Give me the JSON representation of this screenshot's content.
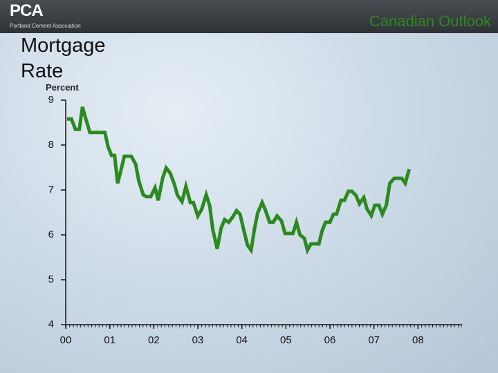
{
  "header": {
    "logo": "PCA",
    "org": "Portland Cement Association",
    "title": "Canadian Outlook"
  },
  "chart_data": {
    "type": "line",
    "title": "Mortgage Rate",
    "y_label": "Percent",
    "color": "#2a8a1e",
    "x": [
      0.03,
      0.13,
      0.22,
      0.31,
      0.38,
      0.47,
      0.55,
      0.64,
      0.74,
      0.83,
      0.89,
      0.96,
      1.04,
      1.11,
      1.18,
      1.26,
      1.33,
      1.41,
      1.49,
      1.59,
      1.66,
      1.76,
      1.84,
      1.93,
      2.03,
      2.1,
      2.2,
      2.28,
      2.37,
      2.46,
      2.54,
      2.64,
      2.73,
      2.83,
      2.9,
      3.0,
      3.09,
      3.19,
      3.27,
      3.34,
      3.44,
      3.53,
      3.61,
      3.7,
      3.78,
      3.88,
      3.96,
      4.05,
      4.13,
      4.21,
      4.29,
      4.36,
      4.46,
      4.54,
      4.63,
      4.71,
      4.8,
      4.9,
      4.98,
      5.07,
      5.16,
      5.24,
      5.32,
      5.42,
      5.49,
      5.57,
      5.67,
      5.75,
      5.82,
      5.9,
      6.0,
      6.08,
      6.15,
      6.25,
      6.33,
      6.42,
      6.5,
      6.59,
      6.67,
      6.77,
      6.84,
      6.94,
      7.02,
      7.11,
      7.19,
      7.28,
      7.36,
      7.46,
      7.54,
      7.63,
      7.71,
      7.8
    ],
    "values": [
      8.58,
      8.58,
      8.35,
      8.35,
      8.85,
      8.54,
      8.28,
      8.28,
      8.28,
      8.28,
      8.28,
      7.97,
      7.77,
      7.77,
      7.15,
      7.46,
      7.75,
      7.75,
      7.75,
      7.57,
      7.2,
      6.89,
      6.85,
      6.85,
      7.05,
      6.77,
      7.26,
      7.49,
      7.38,
      7.15,
      6.88,
      6.74,
      7.08,
      6.72,
      6.72,
      6.42,
      6.57,
      6.89,
      6.65,
      6.12,
      5.69,
      6.15,
      6.34,
      6.28,
      6.38,
      6.54,
      6.46,
      6.08,
      5.77,
      5.66,
      6.15,
      6.49,
      6.72,
      6.54,
      6.28,
      6.28,
      6.42,
      6.31,
      6.03,
      6.03,
      6.03,
      6.28,
      6.0,
      5.92,
      5.66,
      5.8,
      5.8,
      5.8,
      6.08,
      6.28,
      6.28,
      6.46,
      6.46,
      6.77,
      6.77,
      6.97,
      6.97,
      6.88,
      6.69,
      6.83,
      6.58,
      6.43,
      6.66,
      6.66,
      6.46,
      6.66,
      7.15,
      7.26,
      7.26,
      7.26,
      7.15,
      7.46
    ],
    "xlim": [
      0,
      9
    ],
    "xticks": [
      {
        "value": 0,
        "label": "00"
      },
      {
        "value": 1,
        "label": "01"
      },
      {
        "value": 2,
        "label": "02"
      },
      {
        "value": 3,
        "label": "03"
      },
      {
        "value": 4,
        "label": "04"
      },
      {
        "value": 5,
        "label": "05"
      },
      {
        "value": 6,
        "label": "06"
      },
      {
        "value": 7,
        "label": "07"
      },
      {
        "value": 8,
        "label": "08"
      }
    ],
    "ylim": [
      4,
      9
    ],
    "yticks": [
      4,
      5,
      6,
      7,
      8,
      9
    ]
  }
}
